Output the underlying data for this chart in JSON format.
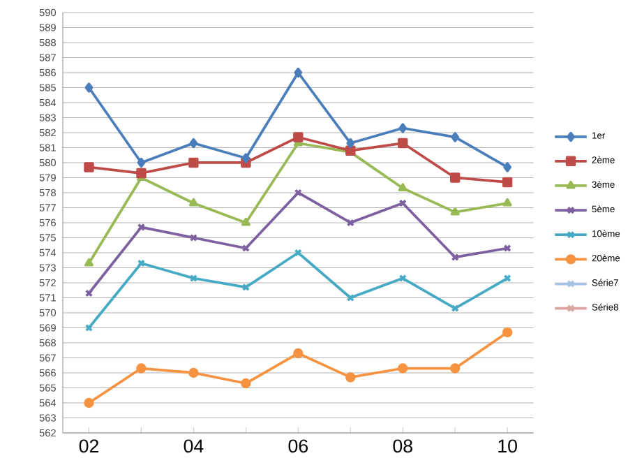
{
  "chart_data": {
    "type": "line",
    "categories": [
      "02",
      null,
      "04",
      null,
      "06",
      null,
      "08",
      null,
      "10"
    ],
    "series": [
      {
        "name": "1er",
        "color": "#4a7ebb",
        "marker": "diamond",
        "values": [
          585,
          580,
          581.3,
          580.3,
          586,
          581.3,
          582.3,
          581.7,
          579.7
        ]
      },
      {
        "name": "2ème",
        "color": "#be4b48",
        "marker": "square",
        "values": [
          579.7,
          579.3,
          580,
          580,
          581.7,
          580.8,
          581.3,
          579,
          578.7
        ]
      },
      {
        "name": "3ème",
        "color": "#98b954",
        "marker": "triangle",
        "values": [
          573.3,
          579,
          577.3,
          576,
          581.3,
          580.7,
          578.3,
          576.7,
          577.3
        ]
      },
      {
        "name": "5ème",
        "color": "#7d60a0",
        "marker": "cross",
        "values": [
          571.3,
          575.7,
          575,
          574.3,
          578,
          576,
          577.3,
          573.7,
          574.3
        ]
      },
      {
        "name": "10ème",
        "color": "#46aac5",
        "marker": "cross",
        "values": [
          569,
          573.3,
          572.3,
          571.7,
          574,
          571,
          572.3,
          570.3,
          572.3
        ]
      },
      {
        "name": "20ème",
        "color": "#f69240",
        "marker": "circle",
        "values": [
          564,
          566.3,
          566,
          565.3,
          567.3,
          565.7,
          566.3,
          566.3,
          568.7
        ]
      },
      {
        "name": "Série7",
        "color": "#a5c0e0",
        "marker": "cross",
        "values": [
          null,
          null,
          null,
          null,
          null,
          null,
          null,
          null,
          null
        ]
      },
      {
        "name": "Série8",
        "color": "#dba5a3",
        "marker": "cross",
        "values": [
          null,
          null,
          null,
          null,
          null,
          null,
          null,
          null,
          null
        ]
      }
    ],
    "ylim": [
      562,
      590
    ],
    "yticks": [
      562,
      563,
      564,
      565,
      566,
      567,
      568,
      569,
      570,
      571,
      572,
      573,
      574,
      575,
      576,
      577,
      578,
      579,
      580,
      581,
      582,
      583,
      584,
      585,
      586,
      587,
      588,
      589,
      590
    ],
    "grid": "y",
    "legend": "right",
    "line_style": "solid"
  }
}
